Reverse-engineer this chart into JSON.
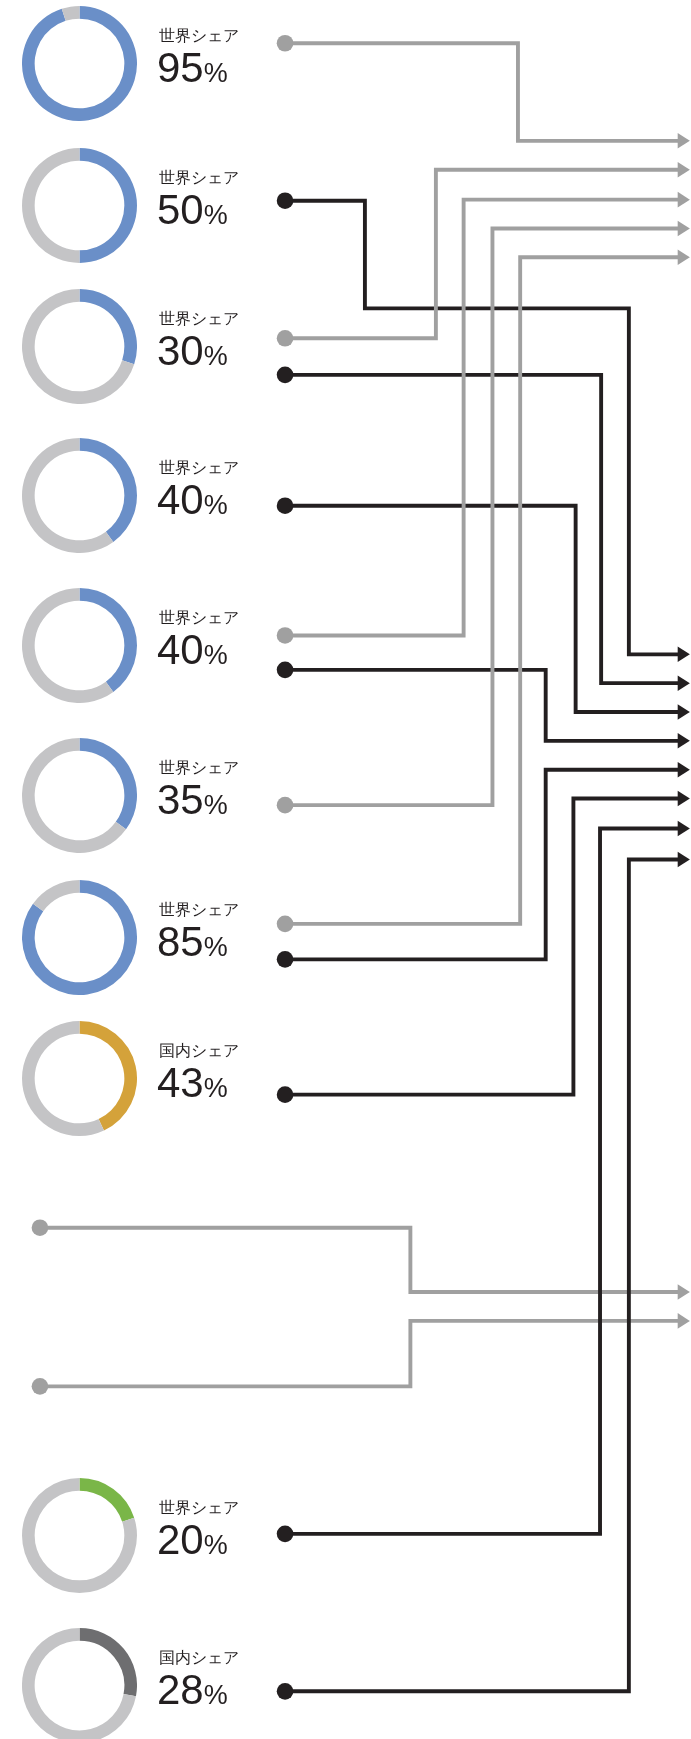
{
  "chart_data": [
    {
      "type": "donut",
      "title": "世界シェア",
      "categories": [
        null,
        null
      ],
      "values": [
        95,
        5
      ],
      "colors": [
        "#6a8fc8",
        "#c4c4c6"
      ],
      "value_labels": [
        "95%",
        null
      ]
    },
    {
      "type": "donut",
      "title": "世界シェア",
      "categories": [
        null,
        null
      ],
      "values": [
        50,
        50
      ],
      "colors": [
        "#6a8fc8",
        "#c4c4c6"
      ],
      "value_labels": [
        "50%",
        null
      ]
    },
    {
      "type": "donut",
      "title": "世界シェア",
      "categories": [
        null,
        null
      ],
      "values": [
        30,
        70
      ],
      "colors": [
        "#6a8fc8",
        "#c4c4c6"
      ],
      "value_labels": [
        "30%",
        null
      ]
    },
    {
      "type": "donut",
      "title": "世界シェア",
      "categories": [
        null,
        null
      ],
      "values": [
        40,
        60
      ],
      "colors": [
        "#6a8fc8",
        "#c4c4c6"
      ],
      "value_labels": [
        "40%",
        null
      ]
    },
    {
      "type": "donut",
      "title": "世界シェア",
      "categories": [
        null,
        null
      ],
      "values": [
        40,
        60
      ],
      "colors": [
        "#6a8fc8",
        "#c4c4c6"
      ],
      "value_labels": [
        "40%",
        null
      ]
    },
    {
      "type": "donut",
      "title": "世界シェア",
      "categories": [
        null,
        null
      ],
      "values": [
        35,
        65
      ],
      "colors": [
        "#6a8fc8",
        "#c4c4c6"
      ],
      "value_labels": [
        "35%",
        null
      ]
    },
    {
      "type": "donut",
      "title": "世界シェア",
      "categories": [
        null,
        null
      ],
      "values": [
        85,
        15
      ],
      "colors": [
        "#6a8fc8",
        "#c4c4c6"
      ],
      "value_labels": [
        "85%",
        null
      ]
    },
    {
      "type": "donut",
      "title": "国内シェア",
      "categories": [
        null,
        null
      ],
      "values": [
        43,
        57
      ],
      "colors": [
        "#d4a23a",
        "#c4c4c6"
      ],
      "value_labels": [
        "43%",
        null
      ]
    },
    {
      "type": "donut",
      "title": "世界シェア",
      "categories": [
        null,
        null
      ],
      "values": [
        20,
        80
      ],
      "colors": [
        "#7ab648",
        "#c4c4c6"
      ],
      "value_labels": [
        "20%",
        null
      ]
    },
    {
      "type": "donut",
      "title": "国内シェア",
      "categories": [
        null,
        null
      ],
      "values": [
        28,
        72
      ],
      "colors": [
        "#6e6e70",
        "#c4c4c6"
      ],
      "value_labels": [
        "28%",
        null
      ]
    }
  ]
}
